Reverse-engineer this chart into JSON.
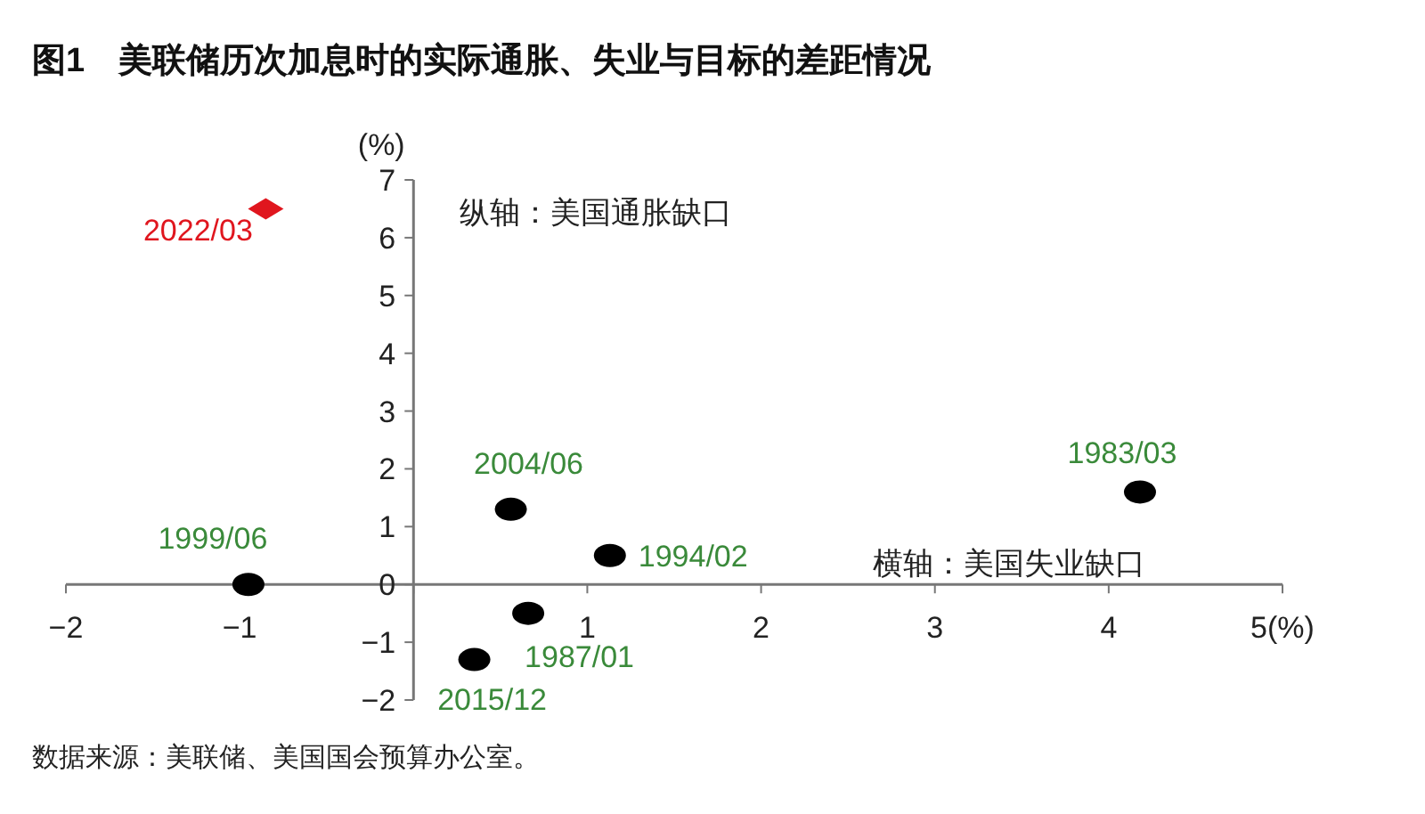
{
  "chart_data": {
    "type": "scatter",
    "title": "图1　美联储历次加息时的实际通胀、失业与目标的差距情况",
    "ylabel": "(%)",
    "xlim": [
      -2,
      5
    ],
    "ylim": [
      -2,
      7
    ],
    "xticks": [
      -2,
      -1,
      {
        "value": 0,
        "label": null
      },
      1,
      2,
      3,
      {
        "value": 4,
        "label": "4"
      },
      {
        "value": 5,
        "label": "5(%)"
      }
    ],
    "yticks": [
      -2,
      -1,
      0,
      1,
      2,
      3,
      4,
      5,
      6,
      7
    ],
    "grid": false,
    "legend": false,
    "marker": "circle",
    "series": [
      {
        "name": "2022/03",
        "color": "#e0161e",
        "marker": "diamond",
        "x": [
          -0.85
        ],
        "values": [
          6.5
        ]
      },
      {
        "name": "1999/06",
        "color": "#000000",
        "x": [
          -0.95
        ],
        "values": [
          0
        ]
      },
      {
        "name": "2004/06",
        "color": "#000000",
        "x": [
          0.56
        ],
        "values": [
          1.3
        ]
      },
      {
        "name": "1994/02",
        "color": "#000000",
        "x": [
          1.13
        ],
        "values": [
          0.5
        ]
      },
      {
        "name": "1987/01",
        "color": "#000000",
        "x": [
          0.66
        ],
        "values": [
          -0.5
        ]
      },
      {
        "name": "2015/12",
        "color": "#000000",
        "x": [
          0.35
        ],
        "values": [
          -1.3
        ]
      },
      {
        "name": "1983/03",
        "color": "#000000",
        "x": [
          4.18
        ],
        "values": [
          1.6
        ]
      }
    ],
    "annotations": [
      "纵轴：美国通胀缺口",
      "横轴：美国失业缺口",
      "数据来源：美联储、美国国会预算办公室。"
    ]
  }
}
